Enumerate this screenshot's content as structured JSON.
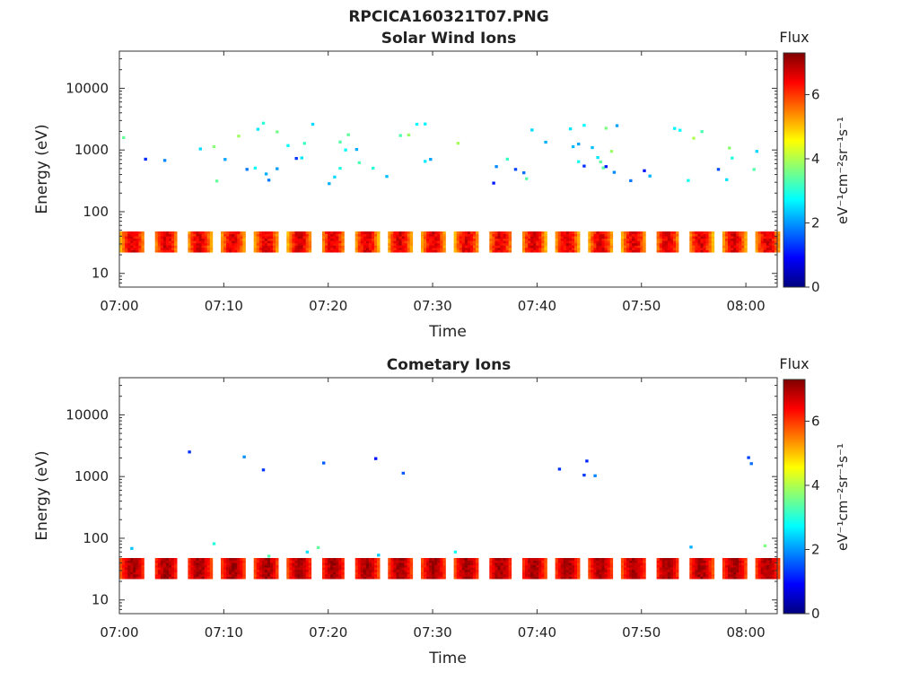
{
  "figure_title": "RPCICA160321T07.PNG",
  "colors": {
    "axis": "#333333",
    "colormap": [
      "#00007f",
      "#0000ff",
      "#007fff",
      "#00ffff",
      "#7fff7f",
      "#ffff00",
      "#ff7f00",
      "#ff0000",
      "#7f0000"
    ]
  },
  "chart_data": [
    {
      "type": "heatmap",
      "title": "Solar Wind Ions",
      "xlabel": "Time",
      "ylabel": "Energy (eV)",
      "x_ticks": [
        "07:00",
        "07:10",
        "07:20",
        "07:30",
        "07:40",
        "07:50",
        "08:00"
      ],
      "xlim": [
        "07:00",
        "08:03"
      ],
      "y_scale": "log",
      "y_ticks": [
        "10",
        "100",
        "1000",
        "10000"
      ],
      "ylim": [
        6,
        40000
      ],
      "colorbar": {
        "title": "Flux",
        "label": "eV⁻¹cm⁻²sr⁻¹s⁻¹",
        "ticks": [
          "0",
          "2",
          "4",
          "6"
        ],
        "range": [
          0,
          7.3
        ]
      },
      "bands": [
        {
          "energy_range": [
            22,
            45
          ],
          "flux_range": [
            4,
            7
          ],
          "period_min": 3.2,
          "description": "periodic solar wind proton band"
        },
        {
          "energy_range": [
            1000,
            3000
          ],
          "flux_range": [
            2,
            4
          ],
          "description": "sporadic high-energy counts"
        },
        {
          "energy_range": [
            300,
            800
          ],
          "flux_range": [
            1,
            3.5
          ],
          "description": "scattered counts"
        }
      ]
    },
    {
      "type": "heatmap",
      "title": "Cometary Ions",
      "xlabel": "Time",
      "ylabel": "Energy (eV)",
      "x_ticks": [
        "07:00",
        "07:10",
        "07:20",
        "07:30",
        "07:40",
        "07:50",
        "08:00"
      ],
      "xlim": [
        "07:00",
        "08:03"
      ],
      "y_scale": "log",
      "y_ticks": [
        "10",
        "100",
        "1000",
        "10000"
      ],
      "ylim": [
        6,
        40000
      ],
      "colorbar": {
        "title": "Flux",
        "label": "eV⁻¹cm⁻²sr⁻¹s⁻¹",
        "ticks": [
          "0",
          "2",
          "4",
          "6"
        ],
        "range": [
          0,
          7.3
        ]
      },
      "bands": [
        {
          "energy_range": [
            22,
            45
          ],
          "flux_range": [
            5,
            7.3
          ],
          "period_min": 3.2,
          "description": "periodic cometary ion band"
        },
        {
          "energy_range": [
            45,
            100
          ],
          "flux_range": [
            2,
            4
          ],
          "description": "upper fringe of band"
        },
        {
          "energy_range": [
            1000,
            3000
          ],
          "flux_range": [
            1,
            2
          ],
          "description": "sparse high-energy counts"
        }
      ]
    }
  ]
}
